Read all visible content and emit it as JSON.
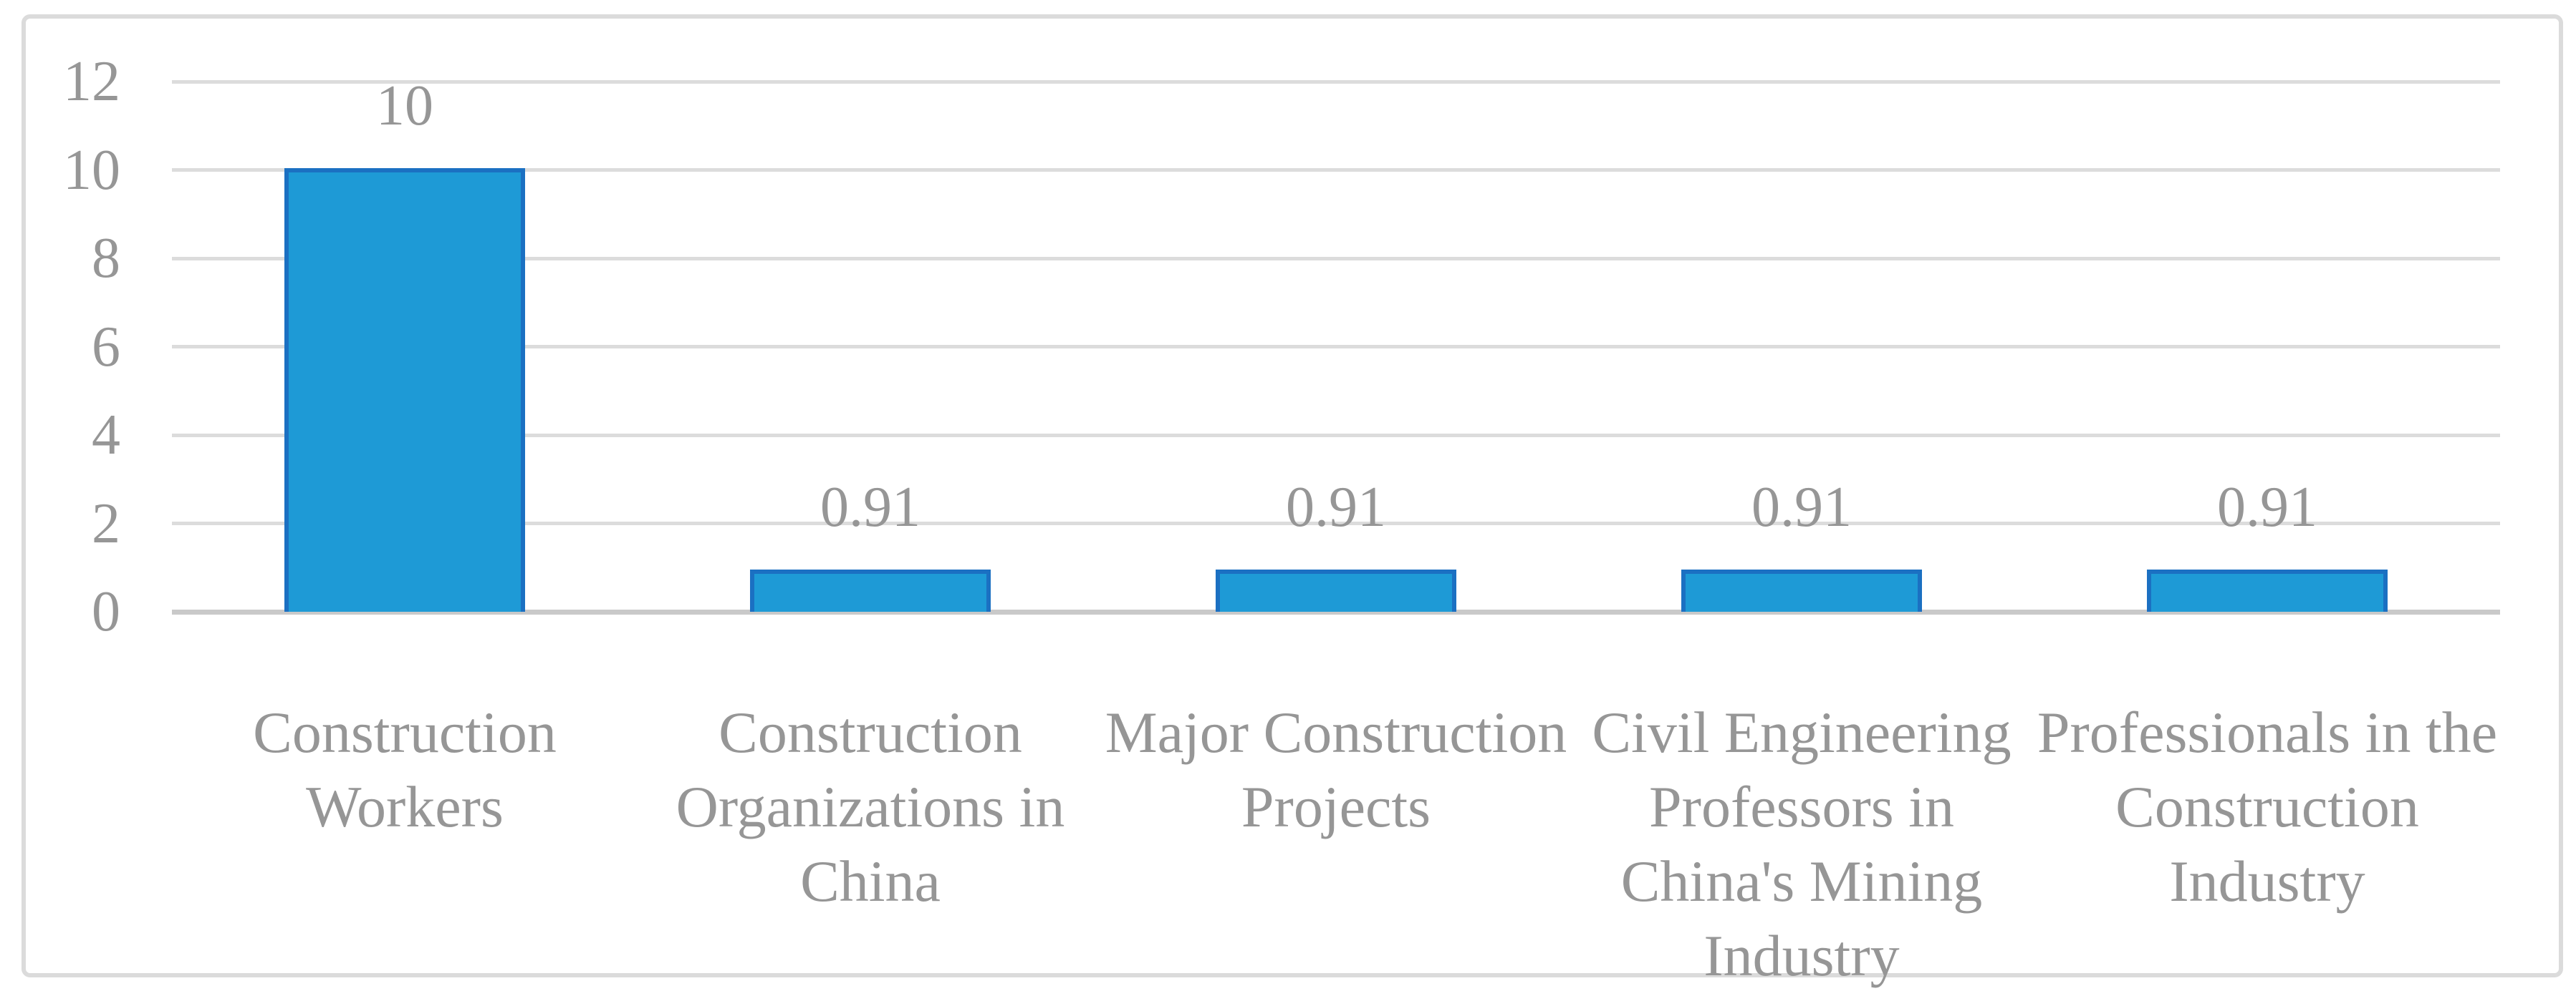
{
  "chart_data": {
    "type": "bar",
    "title": "",
    "xlabel": "",
    "ylabel": "",
    "categories": [
      "Construction Workers",
      "Construction Organizations in China",
      "Major Construction Projects",
      "Civil Engineering Professors in China's Mining Industry",
      "Professionals in the Construction Industry"
    ],
    "wrapped_labels": [
      "Construction\nWorkers",
      "Construction\nOrganizations in\nChina",
      "Major Construction\nProjects",
      "Civil Engineering\nProfessors in\nChina's Mining\nIndustry",
      "Professionals in the\nConstruction\nIndustry"
    ],
    "values": [
      10,
      0.91,
      0.91,
      0.91,
      0.91
    ],
    "value_labels": [
      "10",
      "0.91",
      "0.91",
      "0.91",
      "0.91"
    ],
    "yticks": [
      0,
      2,
      4,
      6,
      8,
      10,
      12
    ],
    "ylim": [
      0,
      12
    ],
    "grid": true,
    "legend": false,
    "colors": {
      "bar_fill": "#1e9ad6",
      "bar_border": "#1b70c2",
      "gridline": "#dcdcdc",
      "axis_line": "#c9c9c9",
      "text": "#969696",
      "frame_border": "#dbdbdb",
      "background": "#ffffff"
    }
  }
}
